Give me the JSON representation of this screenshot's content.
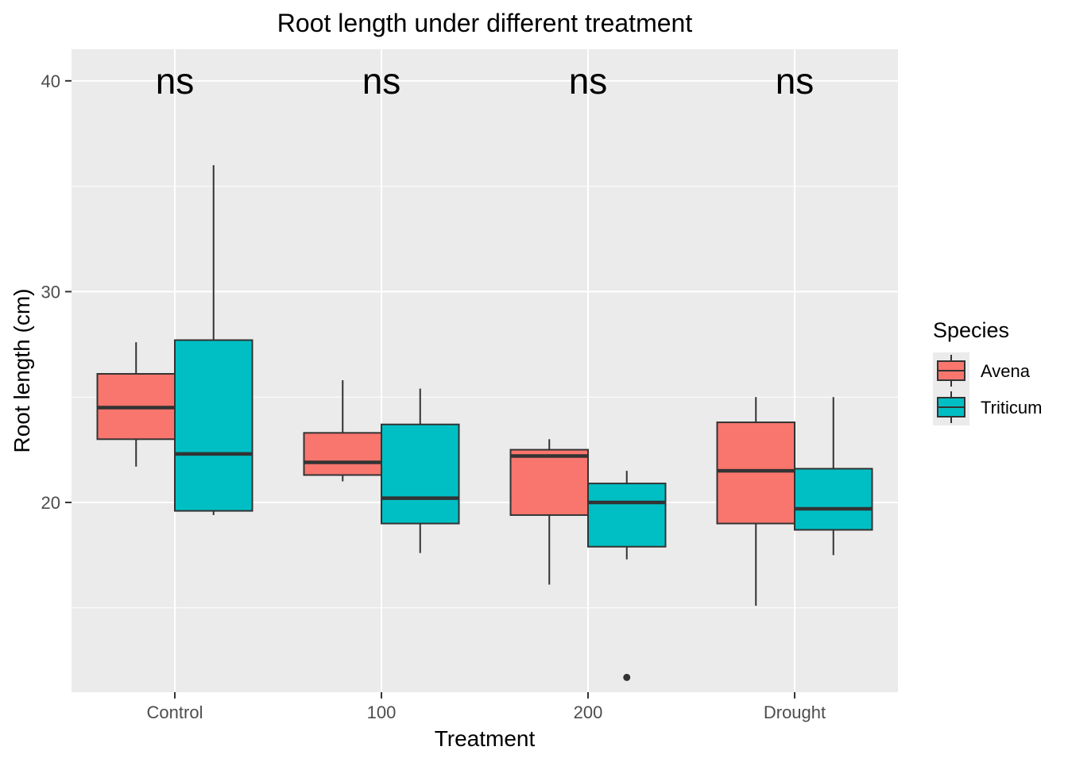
{
  "chart_data": {
    "type": "box",
    "title": "Root length under different treatment",
    "xlabel": "Treatment",
    "ylabel": "Root length (cm)",
    "categories": [
      "Control",
      "100",
      "200",
      "Drought"
    ],
    "ylim": [
      11,
      41.5
    ],
    "yticks": [
      20,
      30,
      40
    ],
    "grid": true,
    "legend": {
      "title": "Species",
      "placement": "right",
      "entries": [
        "Avena",
        "Triticum"
      ]
    },
    "series": [
      {
        "name": "Avena",
        "color": "#F8766D",
        "boxes": [
          {
            "min": 21.7,
            "q1": 23.0,
            "median": 24.5,
            "q3": 26.1,
            "max": 27.6,
            "outliers": []
          },
          {
            "min": 21.0,
            "q1": 21.3,
            "median": 21.9,
            "q3": 23.3,
            "max": 25.8,
            "outliers": []
          },
          {
            "min": 16.1,
            "q1": 19.4,
            "median": 22.2,
            "q3": 22.5,
            "max": 23.0,
            "outliers": []
          },
          {
            "min": 15.1,
            "q1": 19.0,
            "median": 21.5,
            "q3": 23.8,
            "max": 25.0,
            "outliers": []
          }
        ]
      },
      {
        "name": "Triticum",
        "color": "#00BFC4",
        "boxes": [
          {
            "min": 19.4,
            "q1": 19.6,
            "median": 22.3,
            "q3": 27.7,
            "max": 36.0,
            "outliers": []
          },
          {
            "min": 17.6,
            "q1": 19.0,
            "median": 20.2,
            "q3": 23.7,
            "max": 25.4,
            "outliers": []
          },
          {
            "min": 17.3,
            "q1": 17.9,
            "median": 20.0,
            "q3": 20.9,
            "max": 21.5,
            "outliers": [
              11.7
            ]
          },
          {
            "min": 17.5,
            "q1": 18.7,
            "median": 19.7,
            "q3": 21.6,
            "max": 25.0,
            "outliers": []
          }
        ]
      }
    ],
    "annotations": [
      {
        "category": "Control",
        "text": "ns",
        "y": 40
      },
      {
        "category": "100",
        "text": "ns",
        "y": 40
      },
      {
        "category": "200",
        "text": "ns",
        "y": 40
      },
      {
        "category": "Drought",
        "text": "ns",
        "y": 40
      }
    ]
  }
}
